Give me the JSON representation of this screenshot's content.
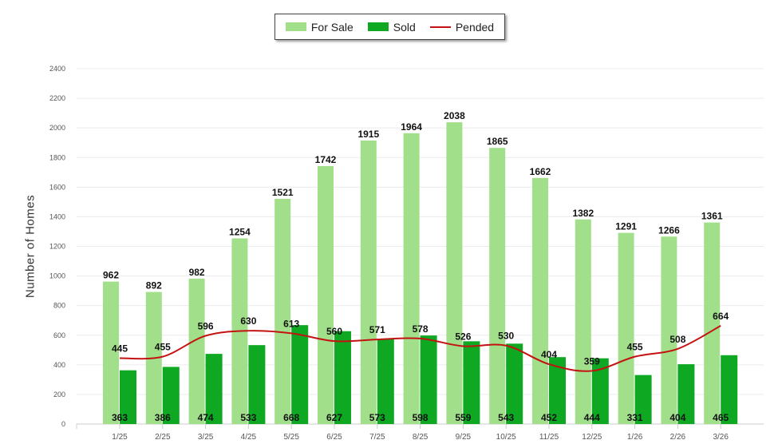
{
  "chart_data": {
    "type": "bar",
    "title": "",
    "xlabel": "",
    "ylabel": "Number of Homes",
    "ylim": [
      0,
      2400
    ],
    "yticks": [
      0,
      200,
      400,
      600,
      800,
      1000,
      1200,
      1400,
      1600,
      1800,
      2000,
      2200,
      2400
    ],
    "grid": true,
    "legend_position": "top-center",
    "categories": [
      "1/25",
      "2/25",
      "3/25",
      "4/25",
      "5/25",
      "6/25",
      "7/25",
      "8/25",
      "9/25",
      "10/25",
      "11/25",
      "12/25",
      "1/26",
      "2/26",
      "3/26"
    ],
    "series": [
      {
        "name": "For Sale",
        "type": "bar",
        "color": "#a1df8a",
        "values": [
          962,
          892,
          982,
          1254,
          1521,
          1742,
          1915,
          1964,
          2038,
          1865,
          1662,
          1382,
          1291,
          1266,
          1361
        ]
      },
      {
        "name": "Sold",
        "type": "bar",
        "color": "#0ea822",
        "values": [
          363,
          386,
          474,
          533,
          668,
          627,
          573,
          598,
          559,
          543,
          452,
          444,
          331,
          404,
          465
        ]
      },
      {
        "name": "Pended",
        "type": "line",
        "color": "#c41212",
        "values": [
          445,
          455,
          596,
          630,
          613,
          560,
          571,
          578,
          526,
          530,
          404,
          359,
          455,
          508,
          664
        ]
      }
    ]
  }
}
